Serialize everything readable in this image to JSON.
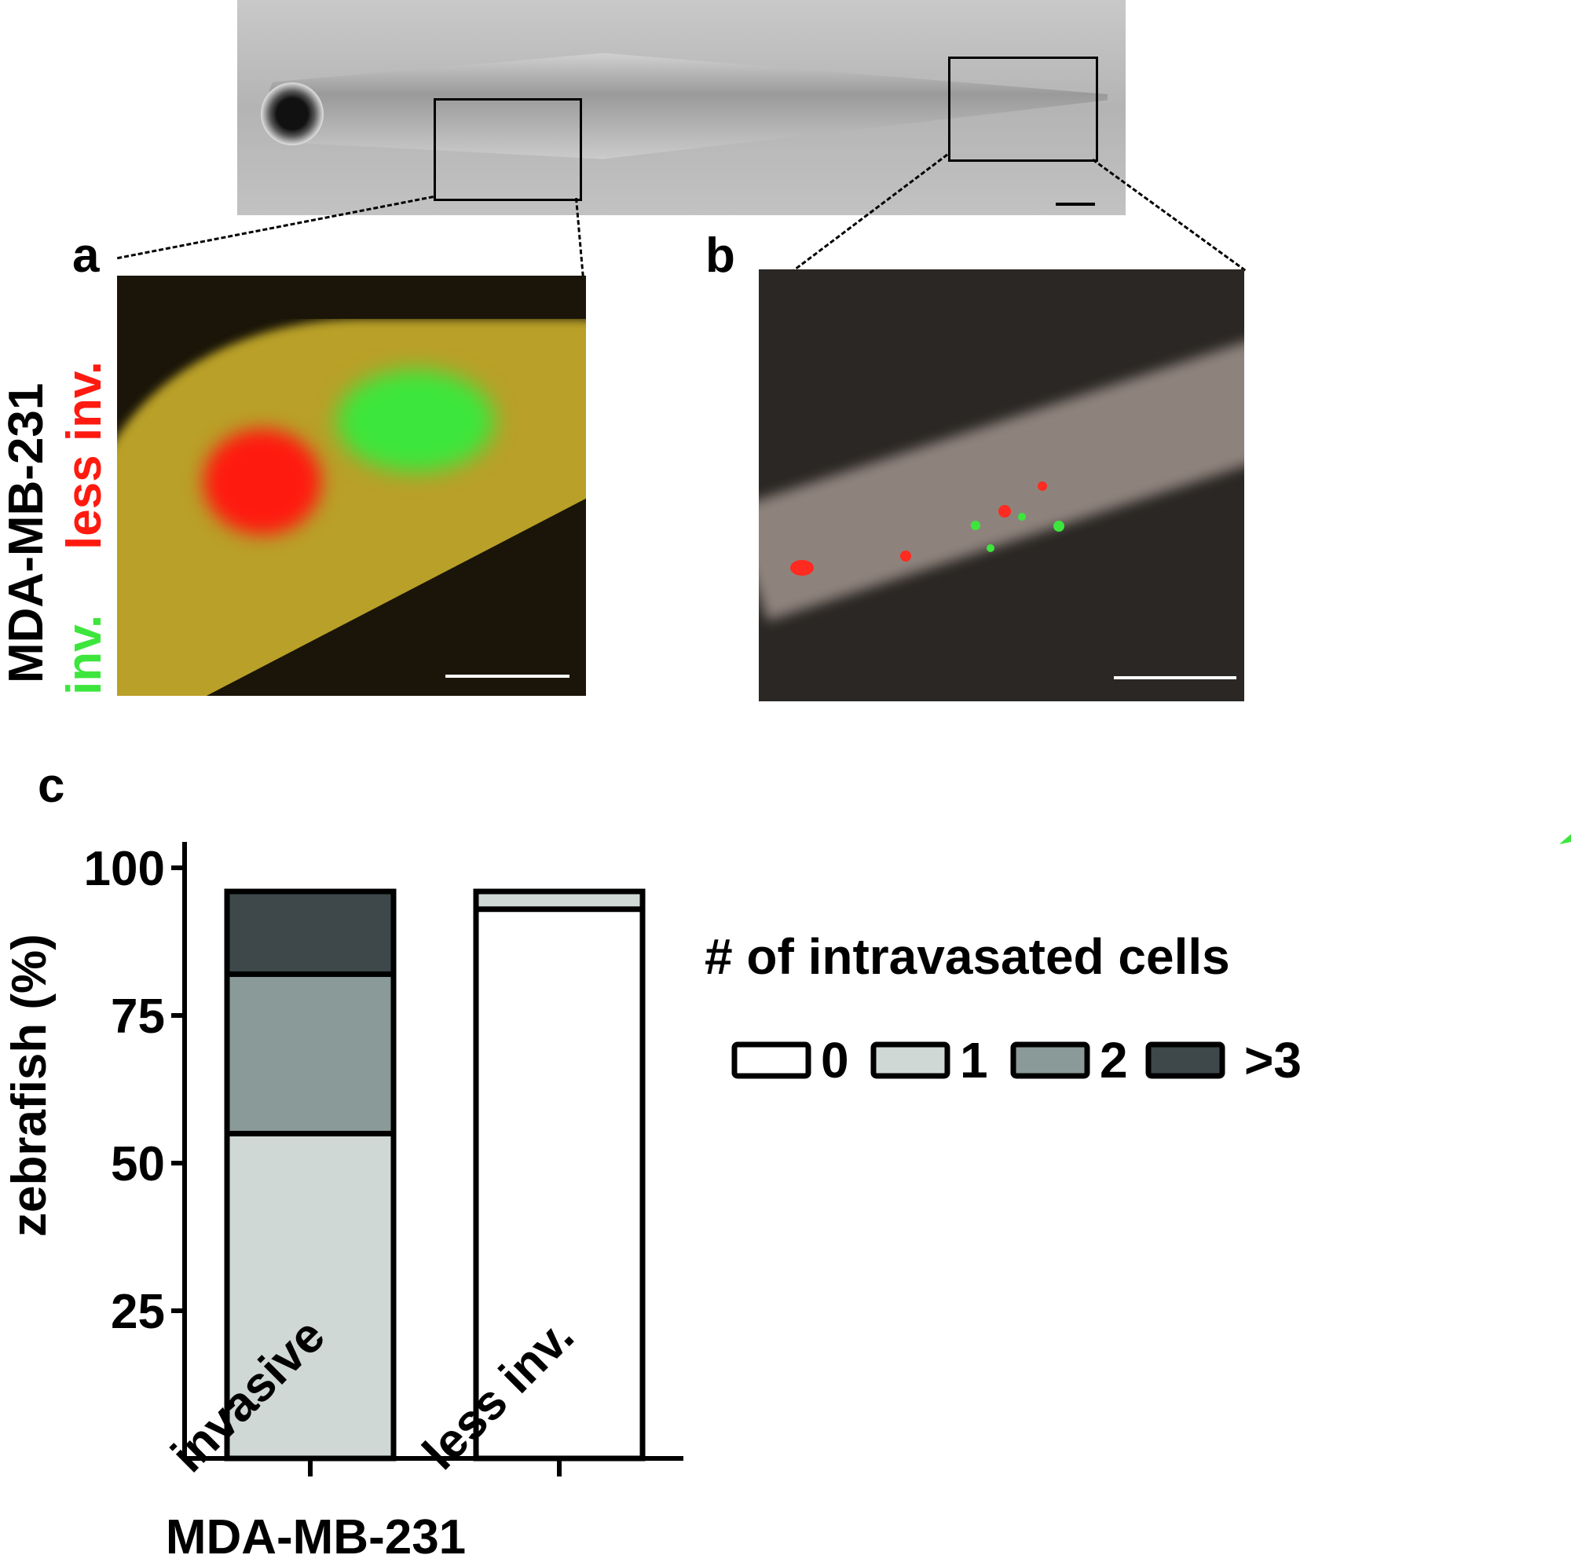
{
  "panels": {
    "a": "a",
    "b": "b",
    "c": "c"
  },
  "side_label": {
    "cell_line": "MDA-MB-231",
    "less_inv": "less inv.",
    "inv": "inv.",
    "less_inv_color": "#ff1a10",
    "inv_color": "#3ce63c"
  },
  "chart_data": {
    "type": "bar",
    "stacked": true,
    "categories": [
      "invasive",
      "less inv."
    ],
    "xlabel": "MDA-MB-231",
    "ylabel": "zebrafish (%)",
    "ylim": [
      0,
      100
    ],
    "yticks": [
      25,
      50,
      75,
      100
    ],
    "legend_title": "# of intravasated cells",
    "legend_position": "right",
    "series": [
      {
        "name": "0",
        "color": "#ffffff",
        "values": [
          0,
          93
        ]
      },
      {
        "name": "1",
        "color": "#d0d8d6",
        "values": [
          55,
          3
        ]
      },
      {
        "name": "2",
        "color": "#8a9a98",
        "values": [
          27,
          0
        ]
      },
      {
        "name": ">3",
        "color": "#3e484a",
        "values": [
          14,
          0
        ]
      }
    ]
  }
}
